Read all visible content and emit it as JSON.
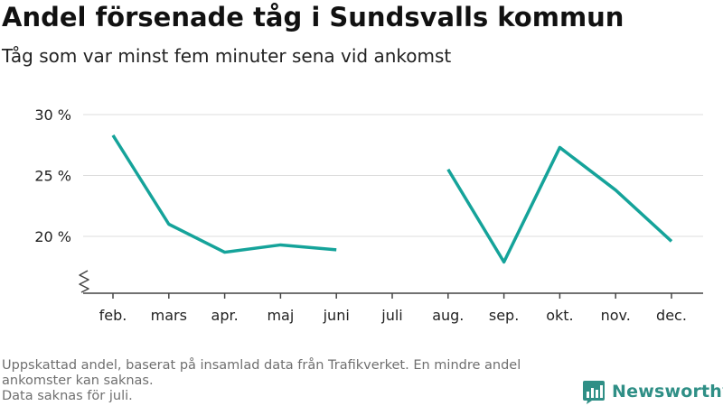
{
  "title": "Andel försenade tåg i Sundsvalls kommun",
  "subtitle": "Tåg som var minst fem minuter sena vid ankomst",
  "chart_data": {
    "type": "line",
    "categories": [
      "feb.",
      "mars",
      "apr.",
      "maj",
      "juni",
      "juli",
      "aug.",
      "sep.",
      "okt.",
      "nov.",
      "dec."
    ],
    "series": [
      {
        "values": [
          28.3,
          21.0,
          18.7,
          19.3,
          18.9,
          null,
          25.5,
          17.9,
          27.3,
          23.8,
          19.6
        ]
      }
    ],
    "y_ticks": [
      {
        "value": 20,
        "label": "20 %"
      },
      {
        "value": 25,
        "label": "25 %"
      },
      {
        "value": 30,
        "label": "30 %"
      }
    ],
    "ylim": [
      15,
      30
    ],
    "y_axis_break": true,
    "grid": true,
    "line_color": "#15a39a"
  },
  "footnote": {
    "line1": "Uppskattad andel, baserat på insamlad data från Trafikverket. En mindre andel ankomster kan saknas.",
    "line2": "Data saknas för juli."
  },
  "logo": {
    "text": "Newsworthy",
    "icon": "newsworthy-logo-icon",
    "color": "#2f8f86"
  }
}
